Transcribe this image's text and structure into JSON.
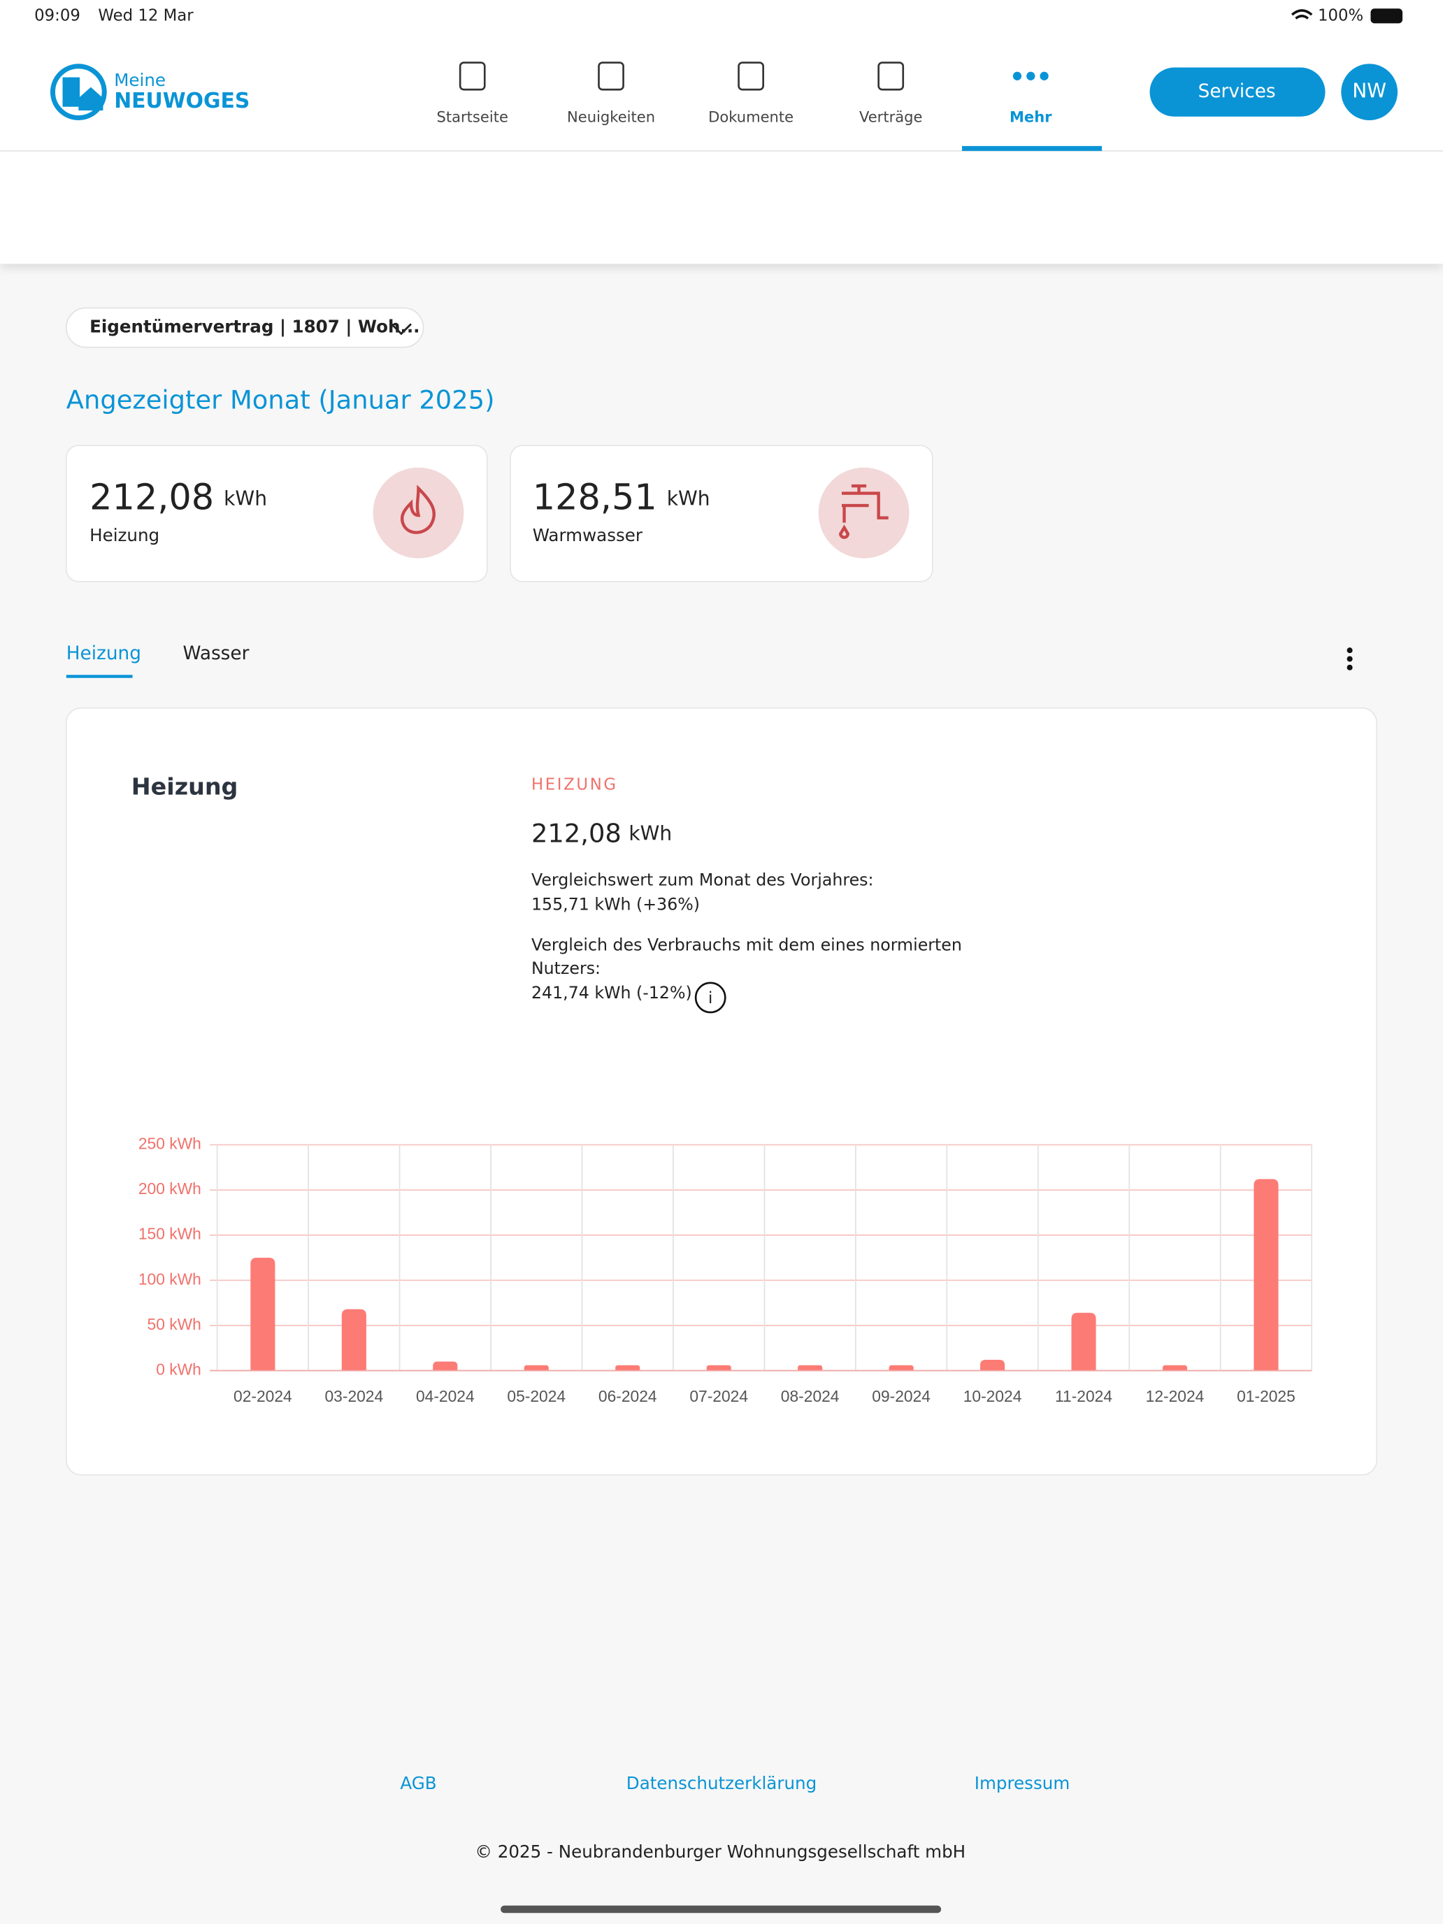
{
  "status_bar": {
    "time": "09:09",
    "date": "Wed 12 Mar",
    "battery": "100%"
  },
  "header": {
    "logo": [
      "Meine",
      "NEUWOGES"
    ],
    "nav": [
      "Startseite",
      "Neuigkeiten",
      "Dokumente",
      "Verträge",
      "Mehr"
    ],
    "services": "Services",
    "avatar": "NW"
  },
  "contract_select": "Eigentümervertrag | 1807 | Woh...",
  "month_title": "Angezeigter Monat (Januar 2025)",
  "cards": [
    {
      "value": "212,08",
      "unit": "kWh",
      "label": "Heizung"
    },
    {
      "value": "128,51",
      "unit": "kWh",
      "label": "Warmwasser"
    }
  ],
  "tabs": [
    "Heizung",
    "Wasser"
  ],
  "panel": {
    "title": "Heizung",
    "kicker": "HEIZUNG",
    "value": "212,08",
    "unit": "kWh",
    "lines": [
      "Vergleichswert zum Monat des Vorjahres:",
      "155,71 kWh (+36%)",
      "Vergleich des Verbrauchs mit dem eines normierten",
      "Nutzers:",
      "241,74 kWh (-12%)"
    ]
  },
  "chart_data": {
    "type": "bar",
    "categories": [
      "02-2024",
      "03-2024",
      "04-2024",
      "05-2024",
      "06-2024",
      "07-2024",
      "08-2024",
      "09-2024",
      "10-2024",
      "11-2024",
      "12-2024",
      "01-2025"
    ],
    "values": [
      125,
      68,
      10,
      6,
      6,
      6,
      6,
      6,
      12,
      64,
      6,
      212.08
    ],
    "color": "#fd7b75",
    "ylim": [
      0,
      250
    ],
    "yticks": [
      {
        "value": 0,
        "label": "0 kWh"
      },
      {
        "value": 50,
        "label": "50 kWh"
      },
      {
        "value": 100,
        "label": "100 kWh"
      },
      {
        "value": 150,
        "label": "150 kWh"
      },
      {
        "value": 200,
        "label": "200 kWh"
      },
      {
        "value": 250,
        "label": "250 kWh"
      }
    ],
    "grid": true
  },
  "footer": {
    "links": [
      "AGB",
      "Datenschutzerklärung",
      "Impressum"
    ],
    "copyright": "© 2025 - Neubrandenburger Wohnungsgesellschaft mbH"
  }
}
